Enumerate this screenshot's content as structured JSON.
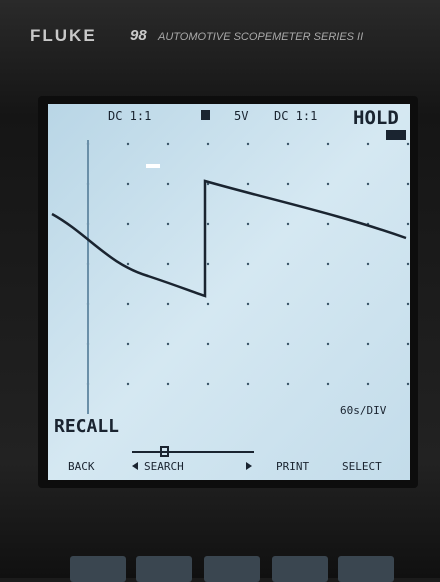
{
  "device": {
    "brand": "FLUKE",
    "model": "98",
    "series": "AUTOMOTIVE SCOPEMETER SERIES II"
  },
  "screen": {
    "readout": [
      "DC 1:1",
      "5V",
      "DC 1:1"
    ],
    "status": "HOLD",
    "mode": "RECALL",
    "timebase": "60s/DIV"
  },
  "softkeys": [
    "BACK",
    "SEARCH",
    "PRINT",
    "SELECT"
  ]
}
